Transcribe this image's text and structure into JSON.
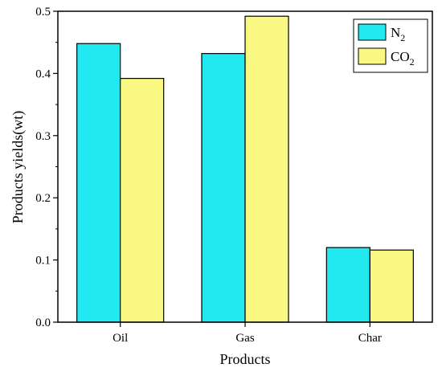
{
  "chart_data": {
    "type": "bar",
    "categories": [
      "Oil",
      "Gas",
      "Char"
    ],
    "series": [
      {
        "name": "N2",
        "label_base": "N",
        "label_sub": "2",
        "values": [
          0.448,
          0.432,
          0.12
        ],
        "color": "#22e8f0"
      },
      {
        "name": "CO2",
        "label_base": "CO",
        "label_sub": "2",
        "values": [
          0.392,
          0.492,
          0.116
        ],
        "color": "#f8f882"
      }
    ],
    "xlabel": "Products",
    "ylabel": "Products yields(wt)",
    "ylim": [
      0.0,
      0.5
    ],
    "yticks": [
      0.0,
      0.1,
      0.2,
      0.3,
      0.4,
      0.5
    ],
    "ytick_labels": [
      "0.0",
      "0.1",
      "0.2",
      "0.3",
      "0.4",
      "0.5"
    ],
    "grid": false,
    "legend_position": "top-right"
  }
}
